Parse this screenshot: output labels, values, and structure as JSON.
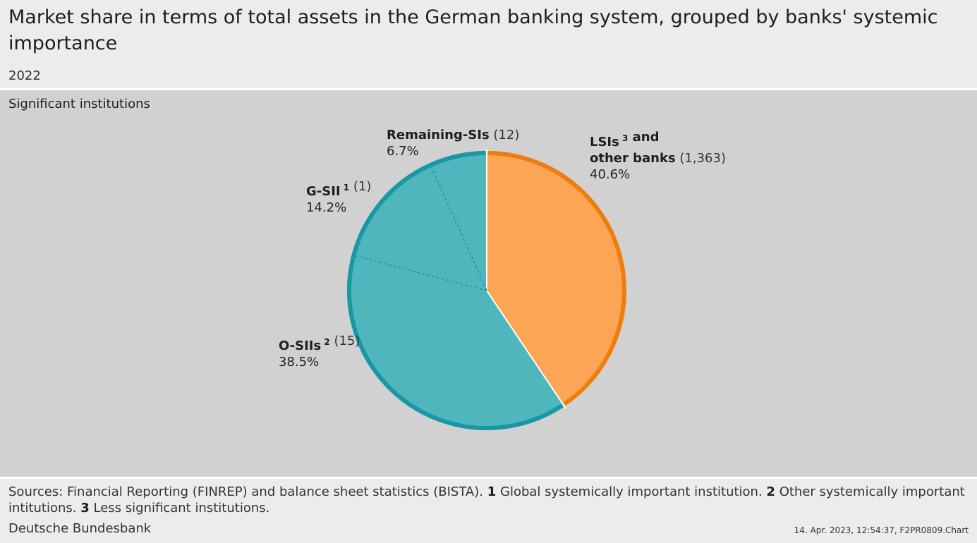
{
  "header": {
    "title": "Market share in terms of total assets in the German banking system, grouped by banks' systemic importance",
    "subtitle": "2022"
  },
  "panel": {
    "title": "Significant institutions"
  },
  "footer": {
    "sources_prefix": "Sources: Financial Reporting (FINREP) and balance sheet statistics (BISTA).",
    "notes": [
      {
        "num": "1",
        "text": "Global systemically important institution."
      },
      {
        "num": "2",
        "text": "Other systemically important intitutions."
      },
      {
        "num": "3",
        "text": "Less significant institutions."
      }
    ],
    "organization": "Deutsche Bundesbank",
    "timestamp": "14. Apr. 2023, 12:54:37, F2PR0809.Chart"
  },
  "colors": {
    "lsi_fill": "#fba555",
    "lsi_border": "#ef7d0c",
    "si_fill": "#50b6bd",
    "si_border": "#1798a3"
  },
  "chart_data": {
    "type": "pie",
    "start_angle_deg": 0,
    "direction": "clockwise",
    "slices": [
      {
        "name": "LSIs",
        "sup": "3",
        "name_line2": "and",
        "line2": "other banks",
        "count": "(1,363)",
        "value": 40.6,
        "label": "40.6%",
        "group": "lsi"
      },
      {
        "name": "O-SIIs",
        "sup": "2",
        "count": "(15)",
        "value": 38.5,
        "label": "38.5%",
        "group": "si"
      },
      {
        "name": "G-SII",
        "sup": "1",
        "count": "(1)",
        "value": 14.2,
        "label": "14.2%",
        "group": "si"
      },
      {
        "name": "Remaining-SIs",
        "sup": "",
        "count": "(12)",
        "value": 6.7,
        "label": "6.7%",
        "group": "si"
      }
    ]
  }
}
